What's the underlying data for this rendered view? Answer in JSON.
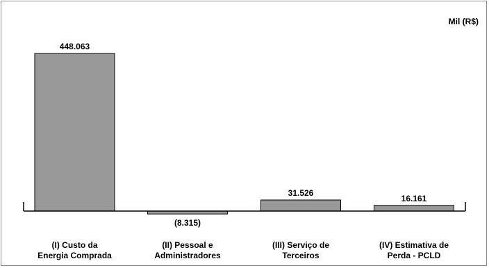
{
  "chart_data": {
    "type": "bar",
    "unit_label": "Mil (R$)",
    "categories": [
      [
        "(I) Custo da",
        "Energia Comprada"
      ],
      [
        "(II) Pessoal e",
        "Administradores"
      ],
      [
        "(III) Serviço de",
        "Terceiros"
      ],
      [
        "(IV) Estimativa de",
        "Perda - PCLD"
      ]
    ],
    "values": [
      448063,
      -8315,
      31526,
      16161
    ],
    "value_labels": [
      "448.063",
      "(8.315)",
      "31.526",
      "16.161"
    ],
    "ylim": [
      -8315,
      448063
    ],
    "grid": false,
    "legend": "none",
    "colors": {
      "bar_fill": "#999999",
      "bar_stroke": "#000000",
      "axis": "#000000",
      "frame": "#8a8a8a"
    }
  }
}
